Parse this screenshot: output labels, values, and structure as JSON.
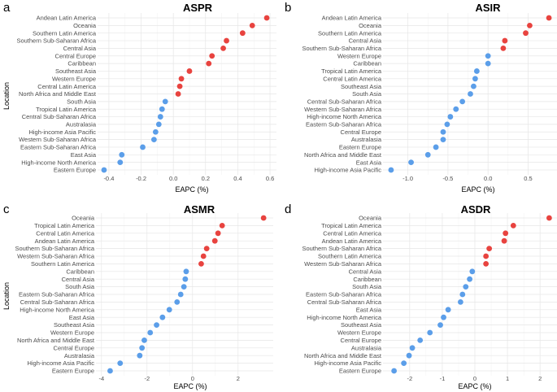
{
  "colors": {
    "positive": "#e8433f",
    "negative": "#5b9ee9",
    "grid": "#e6e6e6"
  },
  "chart_data": [
    {
      "type": "scatter",
      "letter": "a",
      "title": "ASPR",
      "xlabel": "EAPC (%)",
      "ylabel": "Location",
      "xlim": [
        -0.45,
        0.62
      ],
      "xticks": [
        -0.4,
        -0.2,
        0.0,
        0.2,
        0.4,
        0.6
      ],
      "tick_labels": [
        "-0.4",
        "-0.2",
        "0.0",
        "0.2",
        "0.4",
        "0.6"
      ],
      "categories": [
        "Andean Latin America",
        "Oceania",
        "Southern Latin America",
        "Southern Sub-Saharan Africa",
        "Central Asia",
        "Central Europe",
        "Caribbean",
        "Southeast Asia",
        "Western Europe",
        "Central Latin America",
        "North Africa and Middle East",
        "South Asia",
        "Tropical Latin America",
        "Central Sub-Saharan Africa",
        "Australasia",
        "High-income Asia Pacific",
        "Western Sub-Saharan Africa",
        "Eastern Sub-Saharan Africa",
        "East Asia",
        "High-income North America",
        "Eastern Europe"
      ],
      "values": [
        0.58,
        0.49,
        0.43,
        0.33,
        0.31,
        0.24,
        0.22,
        0.1,
        0.05,
        0.04,
        0.03,
        -0.05,
        -0.07,
        -0.08,
        -0.09,
        -0.11,
        -0.12,
        -0.19,
        -0.32,
        -0.33,
        -0.43
      ]
    },
    {
      "type": "scatter",
      "letter": "b",
      "title": "ASIR",
      "xlabel": "EAPC (%)",
      "ylabel": "",
      "xlim": [
        -1.27,
        0.82
      ],
      "xticks": [
        -1.0,
        -0.5,
        0.0,
        0.5
      ],
      "tick_labels": [
        "-1.0",
        "-0.5",
        "0.0",
        "0.5"
      ],
      "categories": [
        "Andean Latin America",
        "Oceania",
        "Southern Latin America",
        "Central Asia",
        "Southern Sub-Saharan Africa",
        "Western Europe",
        "Caribbean",
        "Tropical Latin America",
        "Central Latin America",
        "Southeast Asia",
        "South Asia",
        "Central Sub-Saharan Africa",
        "Western Sub-Saharan Africa",
        "High-income North America",
        "Eastern Sub-Saharan Africa",
        "Central Europe",
        "Australasia",
        "Eastern Europe",
        "North Africa and Middle East",
        "East Asia",
        "High-income Asia Pacific"
      ],
      "values": [
        0.76,
        0.52,
        0.47,
        0.21,
        0.19,
        0.0,
        0.0,
        -0.14,
        -0.16,
        -0.18,
        -0.22,
        -0.32,
        -0.4,
        -0.47,
        -0.51,
        -0.56,
        -0.56,
        -0.65,
        -0.75,
        -0.96,
        -1.21
      ]
    },
    {
      "type": "scatter",
      "letter": "c",
      "title": "ASMR",
      "xlabel": "EAPC (%)",
      "ylabel": "Location",
      "xlim": [
        -4.1,
        3.4
      ],
      "xticks": [
        -4,
        -2,
        0,
        2
      ],
      "tick_labels": [
        "-4",
        "-2",
        "0",
        "2"
      ],
      "categories": [
        "Oceania",
        "Tropical Latin America",
        "Central Latin America",
        "Andean Latin America",
        "Southern Sub-Saharan Africa",
        "Western Sub-Saharan Africa",
        "Southern Latin America",
        "Caribbean",
        "Central Asia",
        "South Asia",
        "Eastern Sub-Saharan Africa",
        "Central Sub-Saharan Africa",
        "High-income North America",
        "East Asia",
        "Southeast Asia",
        "Western Europe",
        "North Africa and Middle East",
        "Central Europe",
        "Australasia",
        "High-income Asia Pacific",
        "Eastern Europe"
      ],
      "values": [
        3.12,
        1.3,
        1.12,
        0.98,
        0.62,
        0.48,
        0.38,
        -0.28,
        -0.32,
        -0.38,
        -0.52,
        -0.68,
        -1.02,
        -1.32,
        -1.58,
        -1.86,
        -2.12,
        -2.22,
        -2.32,
        -3.18,
        -3.62
      ]
    },
    {
      "type": "scatter",
      "letter": "d",
      "title": "ASDR",
      "xlabel": "EAPC (%)",
      "ylabel": "",
      "xlim": [
        -2.72,
        2.42
      ],
      "xticks": [
        -2,
        -1,
        0,
        1,
        2
      ],
      "tick_labels": [
        "-2",
        "-1",
        "0",
        "1",
        "2"
      ],
      "categories": [
        "Oceania",
        "Tropical Latin America",
        "Central Latin America",
        "Andean Latin America",
        "Southern Sub-Saharan Africa",
        "Southern Latin America",
        "Western Sub-Saharan Africa",
        "Central Asia",
        "Caribbean",
        "South Asia",
        "Eastern Sub-Saharan Africa",
        "Central Sub-Saharan Africa",
        "East Asia",
        "High-income North America",
        "Southeast Asia",
        "Western Europe",
        "Central Europe",
        "Australasia",
        "North Africa and Middle East",
        "High-income Asia Pacific",
        "Eastern Europe"
      ],
      "values": [
        2.28,
        1.18,
        0.94,
        0.9,
        0.44,
        0.34,
        0.34,
        -0.08,
        -0.16,
        -0.28,
        -0.38,
        -0.44,
        -0.82,
        -0.96,
        -1.06,
        -1.38,
        -1.68,
        -1.92,
        -2.02,
        -2.18,
        -2.48
      ]
    }
  ]
}
